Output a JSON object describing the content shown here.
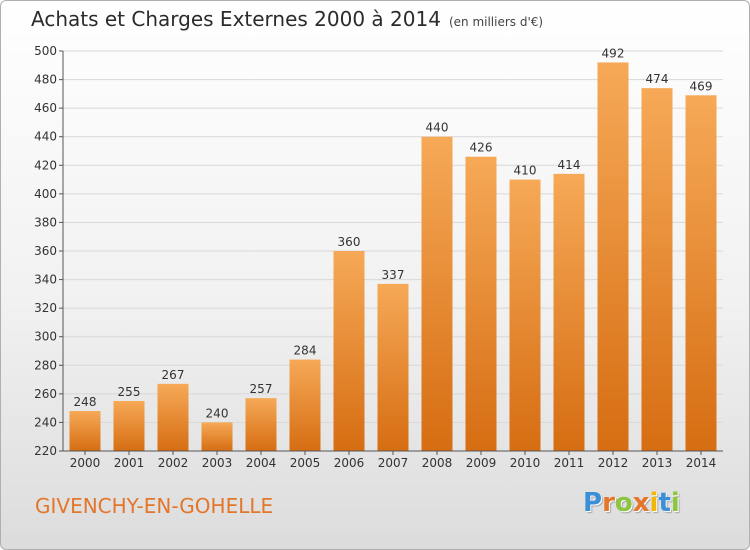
{
  "header": {
    "title": "Achats et Charges Externes 2000 à 2014",
    "subtitle": "(en milliers d'€)"
  },
  "place_name": "GIVENCHY-EN-GOHELLE",
  "logo": {
    "letters": [
      "P",
      "r",
      "o",
      "x",
      "i",
      "t",
      "i"
    ],
    "colors": [
      "#3a8fd8",
      "#e3762a",
      "#8cc63f",
      "#e3762a",
      "#f2b705",
      "#3a8fd8",
      "#8cc63f"
    ]
  },
  "chart_data": {
    "type": "bar",
    "title": "Achats et Charges Externes 2000 à 2014",
    "subtitle": "(en milliers d'€)",
    "xlabel": "",
    "ylabel": "",
    "categories": [
      "2000",
      "2001",
      "2002",
      "2003",
      "2004",
      "2005",
      "2006",
      "2007",
      "2008",
      "2009",
      "2010",
      "2011",
      "2012",
      "2013",
      "2014"
    ],
    "values": [
      248,
      255,
      267,
      240,
      257,
      284,
      360,
      337,
      440,
      426,
      410,
      414,
      492,
      474,
      469
    ],
    "ylim": [
      220,
      500
    ],
    "yticks": [
      220,
      240,
      260,
      280,
      300,
      320,
      340,
      360,
      380,
      400,
      420,
      440,
      460,
      480,
      500
    ],
    "grid": true,
    "bar_color": "#f0922e"
  }
}
